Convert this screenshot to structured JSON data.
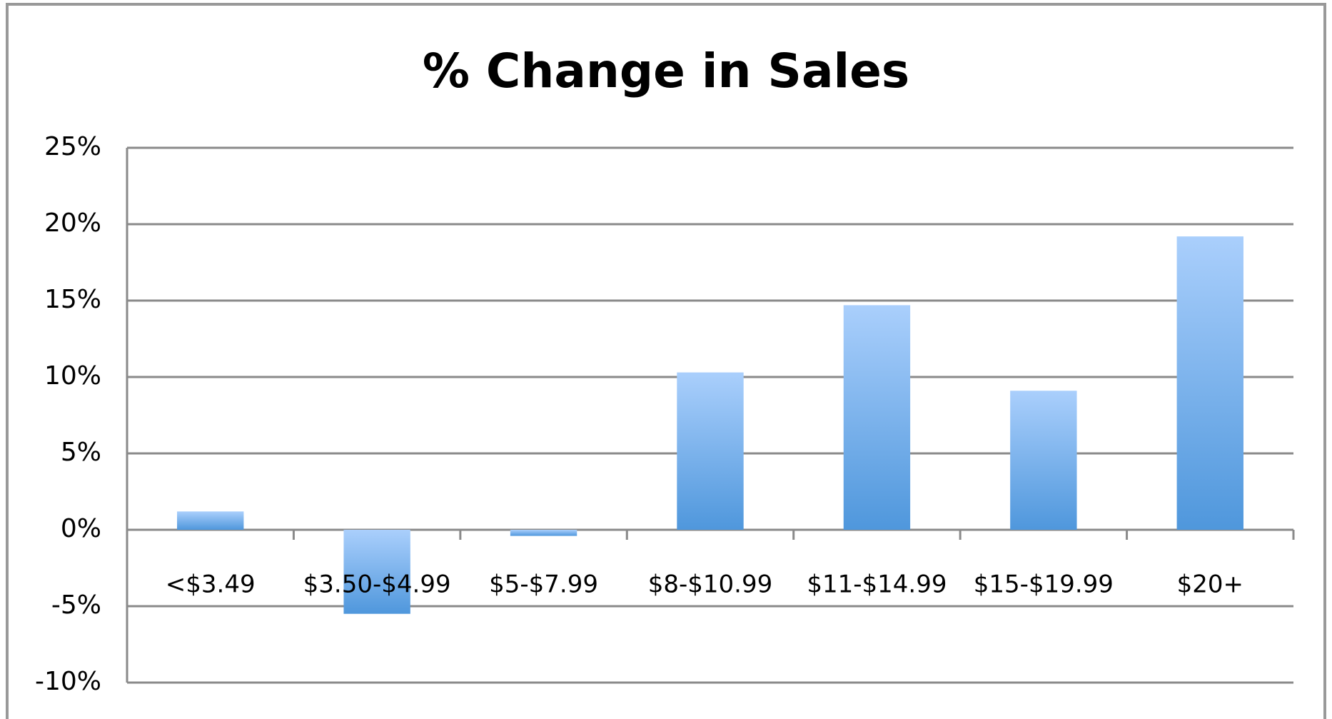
{
  "chart_data": {
    "type": "bar",
    "title": "% Change in Sales",
    "categories": [
      "<$3.49",
      "$3.50-$4.99",
      "$5-$7.99",
      "$8-$10.99",
      "$11-$14.99",
      "$15-$19.99",
      "$20+"
    ],
    "values": [
      1.2,
      -5.5,
      -0.4,
      10.3,
      14.7,
      9.1,
      19.2
    ],
    "color": "#4f97dc",
    "ylim": [
      -10,
      25
    ],
    "yticks": [
      {
        "value": -10,
        "label": "-10%"
      },
      {
        "value": -5,
        "label": "-5%"
      },
      {
        "value": 0,
        "label": "0%"
      },
      {
        "value": 5,
        "label": "5%"
      },
      {
        "value": 10,
        "label": "10%"
      },
      {
        "value": 15,
        "label": "15%"
      },
      {
        "value": 20,
        "label": "20%"
      },
      {
        "value": 25,
        "label": "25%"
      }
    ],
    "grid": true
  }
}
